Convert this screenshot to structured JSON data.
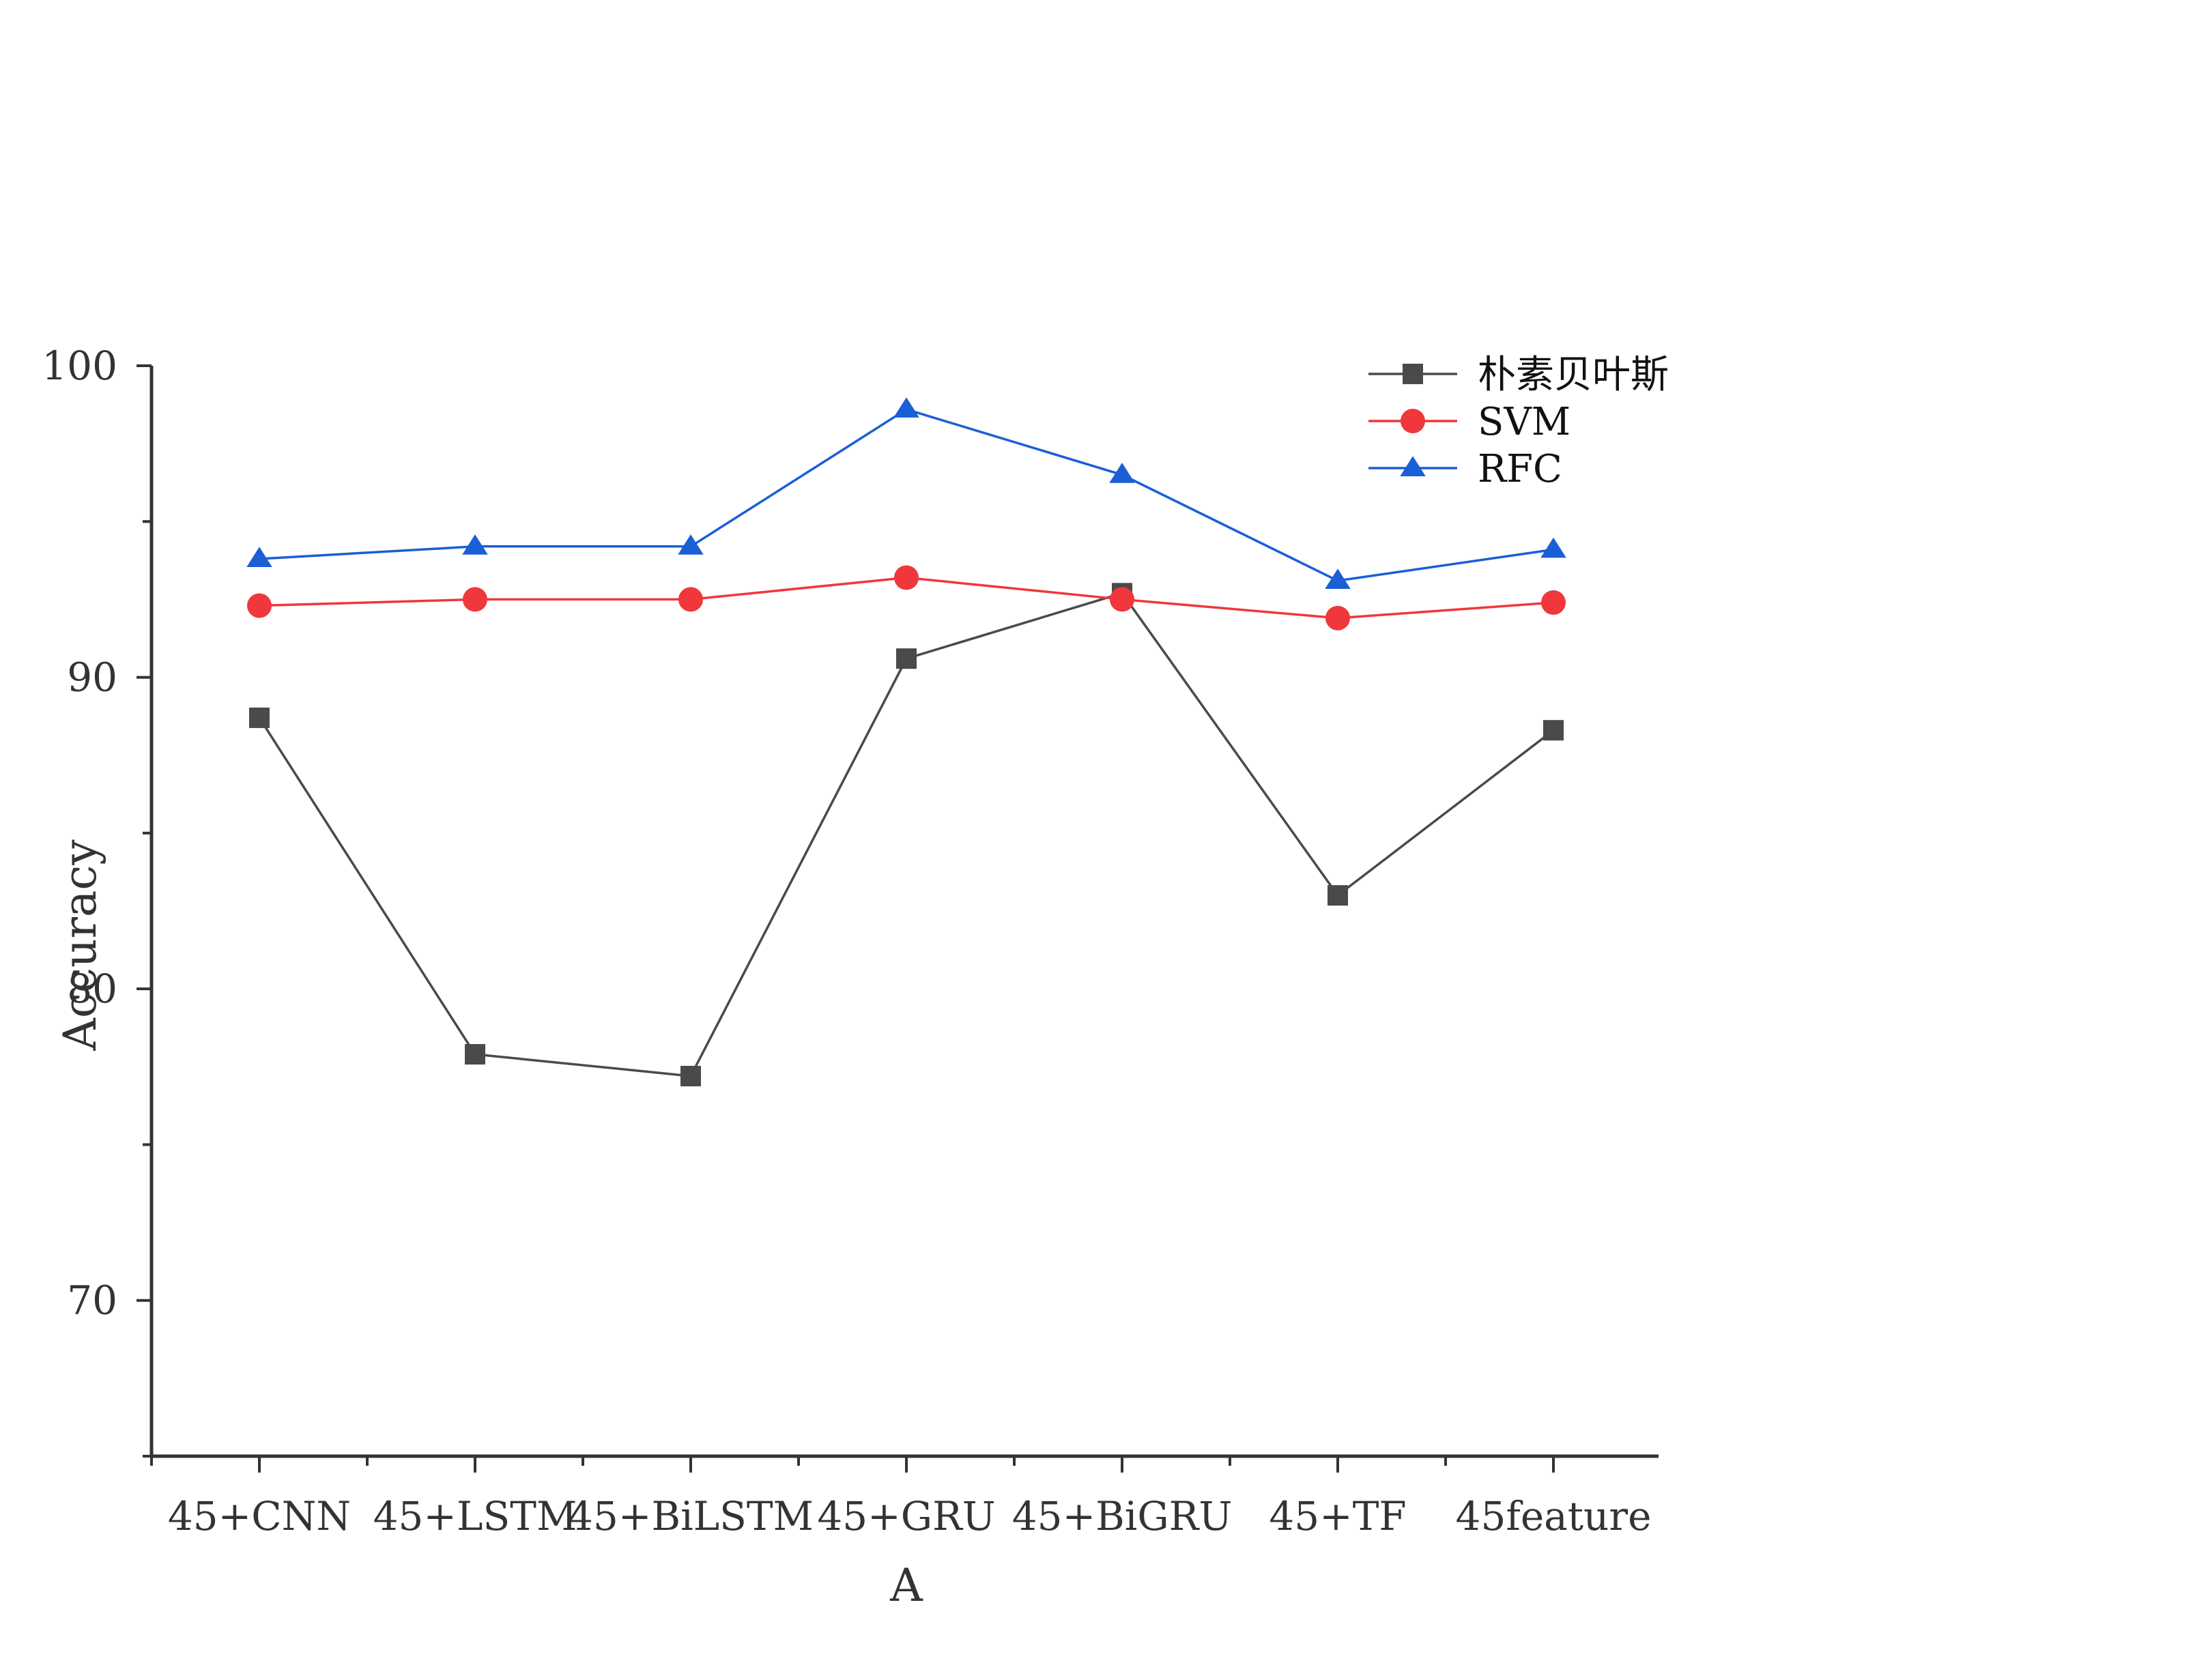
{
  "chart_data": {
    "type": "line",
    "title": "",
    "xlabel": "A",
    "ylabel": "Accuracy",
    "categories": [
      "45+CNN",
      "45+LSTM",
      "45+BiLSTM",
      "45+GRU",
      "45+BiGRU",
      "45+TF",
      "45feature"
    ],
    "ylim": [
      65,
      100
    ],
    "yticks": [
      70,
      80,
      90,
      100
    ],
    "grid": false,
    "legend_position": "top-right",
    "series": [
      {
        "name": "朴素贝叶斯",
        "color": "#4a4a4a",
        "marker": "square",
        "values": [
          88.7,
          77.9,
          77.2,
          90.6,
          92.7,
          83.0,
          88.3
        ]
      },
      {
        "name": "SVM",
        "color": "#f0373b",
        "marker": "circle",
        "values": [
          92.3,
          92.5,
          92.5,
          93.2,
          92.5,
          91.9,
          92.4
        ]
      },
      {
        "name": "RFC",
        "color": "#1a5fd6",
        "marker": "triangle",
        "values": [
          93.8,
          94.2,
          94.2,
          98.6,
          96.5,
          93.1,
          94.1
        ]
      }
    ]
  }
}
